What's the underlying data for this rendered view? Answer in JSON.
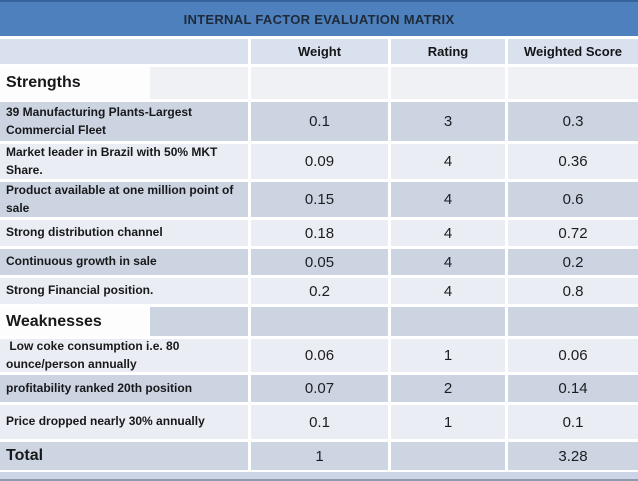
{
  "title": "INTERNAL FACTOR EVALUATION MATRIX",
  "header": {
    "factor": "",
    "weight": "Weight",
    "rating": "Rating",
    "weighted_score": "Weighted Score"
  },
  "rows": [
    {
      "kind": "section",
      "label": "Strengths"
    },
    {
      "kind": "data",
      "label": "39 Manufacturing Plants-Largest Commercial Fleet",
      "weight": "0.1",
      "rating": "3",
      "score": "0.3"
    },
    {
      "kind": "data",
      "label": "Market leader in Brazil with 50% MKT Share.",
      "weight": "0.09",
      "rating": "4",
      "score": "0.36"
    },
    {
      "kind": "data",
      "label": "Product available at one million point of sale",
      "weight": "0.15",
      "rating": "4",
      "score": "0.6"
    },
    {
      "kind": "data",
      "label": "Strong distribution channel",
      "weight": "0.18",
      "rating": "4",
      "score": "0.72"
    },
    {
      "kind": "data",
      "label": "Continuous growth in sale",
      "weight": "0.05",
      "rating": "4",
      "score": "0.2"
    },
    {
      "kind": "data",
      "label": "Strong Financial position.",
      "weight": "0.2",
      "rating": "4",
      "score": "0.8"
    },
    {
      "kind": "section",
      "label": "Weaknesses"
    },
    {
      "kind": "data",
      "label": " Low coke consumption i.e. 80 ounce/person annually",
      "weight": "0.06",
      "rating": "1",
      "score": "0.06"
    },
    {
      "kind": "data",
      "label": "profitability ranked 20th position",
      "weight": "0.07",
      "rating": "2",
      "score": "0.14"
    },
    {
      "kind": "data",
      "label": "Price dropped nearly 30% annually",
      "weight": "0.1",
      "rating": "1",
      "score": "0.1"
    },
    {
      "kind": "total",
      "label": "Total",
      "weight": "1",
      "rating": "",
      "score": "3.28"
    }
  ],
  "colors": {
    "title_bar": "#4d80bc",
    "title_text": "#1e2a3a",
    "header_row": "#d9e1ee",
    "row_dark": "#ccd4e2",
    "row_light": "#eaedf3",
    "total_row": "#cdd5e3",
    "bottom_strip": "#ccd4e6"
  }
}
